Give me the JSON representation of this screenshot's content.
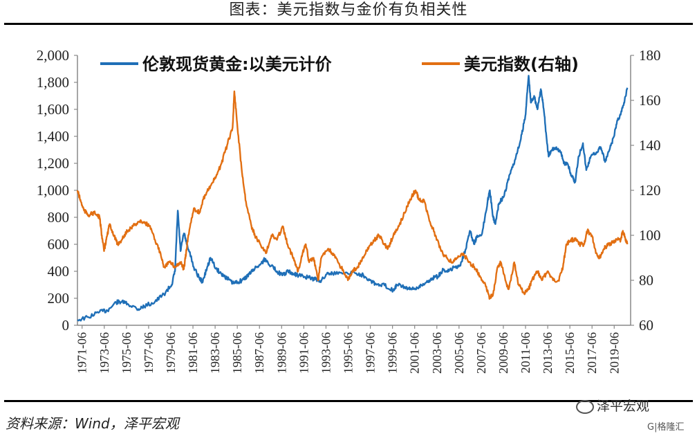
{
  "header": {
    "title": "图表：美元指数与金价有负相关性"
  },
  "footer": {
    "source": "资料来源：Wind，泽平宏观"
  },
  "watermark": {
    "brand": "泽平宏观",
    "sub": "G|格隆汇"
  },
  "colors": {
    "gold": "#1F6FB7",
    "usd": "#E26F12",
    "axis": "#888888",
    "text": "#222222"
  },
  "chart_data": {
    "type": "line",
    "x_ticks": [
      "1971-06",
      "1973-06",
      "1975-06",
      "1977-06",
      "1979-06",
      "1981-06",
      "1983-06",
      "1985-06",
      "1987-06",
      "1989-06",
      "1991-06",
      "1993-06",
      "1995-06",
      "1997-06",
      "1999-06",
      "2001-06",
      "2003-06",
      "2005-06",
      "2007-06",
      "2009-06",
      "2011-06",
      "2013-06",
      "2015-06",
      "2017-06",
      "2019-06"
    ],
    "xlim": [
      1971.0,
      2020.9
    ],
    "y_left": {
      "ticks": [
        "0",
        "200",
        "400",
        "600",
        "800",
        "1,000",
        "1,200",
        "1,400",
        "1,600",
        "1,800",
        "2,000"
      ],
      "lim": [
        0,
        2000
      ]
    },
    "y_right": {
      "ticks": [
        "60",
        "80",
        "100",
        "120",
        "140",
        "160",
        "180"
      ],
      "lim": [
        60,
        180
      ]
    },
    "series": [
      {
        "name": "伦敦现货黄金:以美元计价",
        "axis": "left",
        "color": "#1F6FB7",
        "points": [
          [
            1971.0,
            40
          ],
          [
            1972.0,
            60
          ],
          [
            1973.0,
            100
          ],
          [
            1973.7,
            110
          ],
          [
            1974.5,
            170
          ],
          [
            1975.0,
            175
          ],
          [
            1975.5,
            160
          ],
          [
            1976.5,
            120
          ],
          [
            1977.0,
            140
          ],
          [
            1978.0,
            175
          ],
          [
            1978.8,
            230
          ],
          [
            1979.5,
            300
          ],
          [
            1979.8,
            400
          ],
          [
            1980.05,
            850
          ],
          [
            1980.3,
            550
          ],
          [
            1980.6,
            680
          ],
          [
            1980.9,
            600
          ],
          [
            1981.5,
            430
          ],
          [
            1982.0,
            350
          ],
          [
            1982.3,
            320
          ],
          [
            1982.7,
            430
          ],
          [
            1983.0,
            500
          ],
          [
            1983.5,
            420
          ],
          [
            1984.0,
            380
          ],
          [
            1984.5,
            350
          ],
          [
            1985.0,
            310
          ],
          [
            1985.5,
            320
          ],
          [
            1986.0,
            340
          ],
          [
            1986.5,
            380
          ],
          [
            1987.0,
            420
          ],
          [
            1987.6,
            460
          ],
          [
            1987.9,
            490
          ],
          [
            1988.5,
            440
          ],
          [
            1989.0,
            400
          ],
          [
            1989.5,
            370
          ],
          [
            1990.0,
            400
          ],
          [
            1990.5,
            380
          ],
          [
            1991.0,
            370
          ],
          [
            1991.5,
            360
          ],
          [
            1992.0,
            350
          ],
          [
            1992.5,
            340
          ],
          [
            1993.0,
            330
          ],
          [
            1993.6,
            390
          ],
          [
            1994.0,
            385
          ],
          [
            1995.0,
            385
          ],
          [
            1996.0,
            390
          ],
          [
            1996.8,
            370
          ],
          [
            1997.5,
            330
          ],
          [
            1998.0,
            300
          ],
          [
            1998.7,
            295
          ],
          [
            1999.5,
            260
          ],
          [
            1999.8,
            300
          ],
          [
            2000.5,
            285
          ],
          [
            2001.0,
            265
          ],
          [
            2001.5,
            270
          ],
          [
            2002.0,
            300
          ],
          [
            2002.6,
            320
          ],
          [
            2003.0,
            350
          ],
          [
            2003.5,
            360
          ],
          [
            2004.0,
            410
          ],
          [
            2004.5,
            400
          ],
          [
            2005.0,
            430
          ],
          [
            2005.5,
            440
          ],
          [
            2006.0,
            560
          ],
          [
            2006.4,
            700
          ],
          [
            2006.8,
            600
          ],
          [
            2007.0,
            650
          ],
          [
            2007.5,
            680
          ],
          [
            2008.0,
            920
          ],
          [
            2008.2,
            1000
          ],
          [
            2008.5,
            800
          ],
          [
            2008.7,
            750
          ],
          [
            2009.0,
            900
          ],
          [
            2009.5,
            960
          ],
          [
            2010.0,
            1120
          ],
          [
            2010.5,
            1230
          ],
          [
            2011.0,
            1380
          ],
          [
            2011.4,
            1550
          ],
          [
            2011.7,
            1850
          ],
          [
            2011.9,
            1650
          ],
          [
            2012.2,
            1700
          ],
          [
            2012.5,
            1600
          ],
          [
            2012.8,
            1750
          ],
          [
            2013.0,
            1650
          ],
          [
            2013.3,
            1400
          ],
          [
            2013.5,
            1250
          ],
          [
            2013.8,
            1300
          ],
          [
            2014.2,
            1320
          ],
          [
            2014.6,
            1280
          ],
          [
            2014.9,
            1200
          ],
          [
            2015.2,
            1200
          ],
          [
            2015.6,
            1100
          ],
          [
            2015.9,
            1060
          ],
          [
            2016.2,
            1250
          ],
          [
            2016.6,
            1350
          ],
          [
            2016.9,
            1150
          ],
          [
            2017.3,
            1250
          ],
          [
            2017.8,
            1280
          ],
          [
            2018.2,
            1320
          ],
          [
            2018.6,
            1210
          ],
          [
            2019.0,
            1300
          ],
          [
            2019.4,
            1400
          ],
          [
            2019.7,
            1520
          ],
          [
            2020.0,
            1560
          ],
          [
            2020.3,
            1650
          ],
          [
            2020.6,
            1760
          ]
        ]
      },
      {
        "name": "美元指数(右轴)",
        "axis": "right",
        "color": "#E26F12",
        "points": [
          [
            1971.0,
            120
          ],
          [
            1971.3,
            115
          ],
          [
            1971.6,
            111
          ],
          [
            1972.0,
            109
          ],
          [
            1972.5,
            110
          ],
          [
            1973.0,
            108
          ],
          [
            1973.2,
            100
          ],
          [
            1973.4,
            93
          ],
          [
            1973.6,
            98
          ],
          [
            1973.9,
            105
          ],
          [
            1974.3,
            100
          ],
          [
            1974.6,
            96
          ],
          [
            1975.0,
            98
          ],
          [
            1975.5,
            102
          ],
          [
            1976.0,
            104
          ],
          [
            1976.5,
            106
          ],
          [
            1977.0,
            106
          ],
          [
            1977.5,
            104
          ],
          [
            1978.0,
            98
          ],
          [
            1978.5,
            92
          ],
          [
            1978.8,
            86
          ],
          [
            1979.3,
            88
          ],
          [
            1979.8,
            86
          ],
          [
            1980.3,
            88
          ],
          [
            1980.6,
            85
          ],
          [
            1980.8,
            92
          ],
          [
            1981.0,
            100
          ],
          [
            1981.5,
            112
          ],
          [
            1982.0,
            110
          ],
          [
            1982.5,
            118
          ],
          [
            1983.0,
            122
          ],
          [
            1983.5,
            126
          ],
          [
            1984.0,
            132
          ],
          [
            1984.5,
            140
          ],
          [
            1985.0,
            148
          ],
          [
            1985.15,
            164
          ],
          [
            1985.4,
            150
          ],
          [
            1985.8,
            130
          ],
          [
            1986.2,
            115
          ],
          [
            1986.7,
            104
          ],
          [
            1987.0,
            100
          ],
          [
            1987.5,
            96
          ],
          [
            1988.0,
            92
          ],
          [
            1988.5,
            100
          ],
          [
            1989.0,
            98
          ],
          [
            1989.5,
            104
          ],
          [
            1990.0,
            95
          ],
          [
            1990.5,
            90
          ],
          [
            1990.9,
            84
          ],
          [
            1991.3,
            92
          ],
          [
            1991.6,
            96
          ],
          [
            1991.9,
            88
          ],
          [
            1992.3,
            90
          ],
          [
            1992.7,
            80
          ],
          [
            1993.0,
            90
          ],
          [
            1993.6,
            94
          ],
          [
            1994.0,
            92
          ],
          [
            1994.5,
            88
          ],
          [
            1995.0,
            84
          ],
          [
            1995.4,
            80
          ],
          [
            1995.8,
            84
          ],
          [
            1996.3,
            86
          ],
          [
            1996.8,
            90
          ],
          [
            1997.3,
            95
          ],
          [
            1997.8,
            98
          ],
          [
            1998.2,
            100
          ],
          [
            1998.7,
            96
          ],
          [
            1999.0,
            94
          ],
          [
            1999.5,
            100
          ],
          [
            2000.0,
            104
          ],
          [
            2000.5,
            110
          ],
          [
            2001.0,
            116
          ],
          [
            2001.5,
            120
          ],
          [
            2001.8,
            116
          ],
          [
            2002.3,
            115
          ],
          [
            2002.8,
            106
          ],
          [
            2003.3,
            100
          ],
          [
            2003.8,
            93
          ],
          [
            2004.3,
            90
          ],
          [
            2004.8,
            88
          ],
          [
            2005.3,
            90
          ],
          [
            2005.8,
            92
          ],
          [
            2006.3,
            88
          ],
          [
            2006.8,
            86
          ],
          [
            2007.3,
            82
          ],
          [
            2007.8,
            78
          ],
          [
            2008.2,
            72
          ],
          [
            2008.5,
            74
          ],
          [
            2008.9,
            86
          ],
          [
            2009.2,
            88
          ],
          [
            2009.6,
            80
          ],
          [
            2009.9,
            76
          ],
          [
            2010.4,
            88
          ],
          [
            2010.8,
            78
          ],
          [
            2011.3,
            74
          ],
          [
            2011.7,
            76
          ],
          [
            2012.0,
            80
          ],
          [
            2012.5,
            84
          ],
          [
            2012.9,
            80
          ],
          [
            2013.4,
            84
          ],
          [
            2013.9,
            80
          ],
          [
            2014.4,
            80
          ],
          [
            2014.8,
            86
          ],
          [
            2015.1,
            96
          ],
          [
            2015.5,
            98
          ],
          [
            2015.9,
            98
          ],
          [
            2016.3,
            96
          ],
          [
            2016.7,
            96
          ],
          [
            2017.0,
            102
          ],
          [
            2017.4,
            100
          ],
          [
            2017.8,
            92
          ],
          [
            2018.1,
            90
          ],
          [
            2018.5,
            94
          ],
          [
            2018.9,
            96
          ],
          [
            2019.3,
            97
          ],
          [
            2019.7,
            98
          ],
          [
            2020.0,
            98
          ],
          [
            2020.2,
            102
          ],
          [
            2020.4,
            99
          ],
          [
            2020.6,
            96
          ]
        ]
      }
    ]
  }
}
